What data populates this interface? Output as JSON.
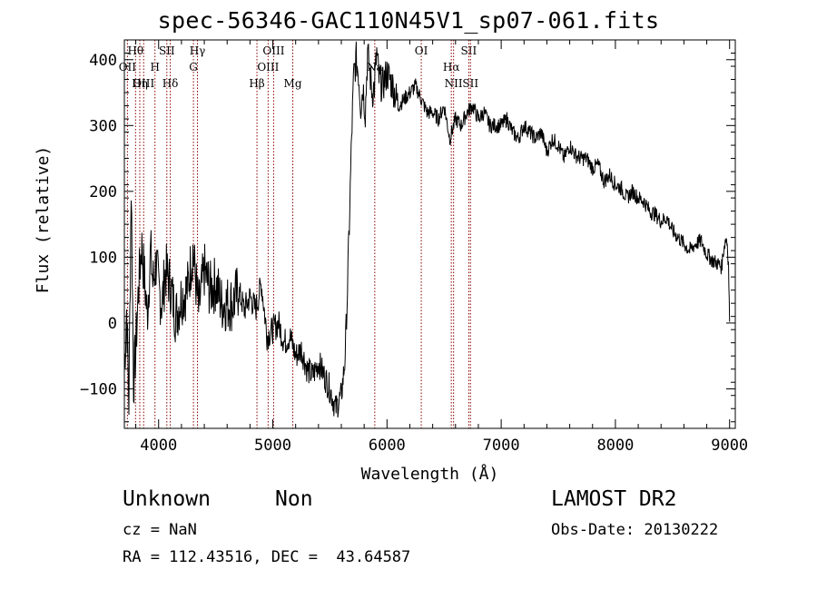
{
  "chart_data": {
    "type": "line",
    "title": "spec-56346-GAC110N45V1_sp07-061.fits",
    "xlabel": "Wavelength (Å)",
    "ylabel": "Flux (relative)",
    "xlim": [
      3700,
      9050
    ],
    "ylim": [
      -160,
      430
    ],
    "xticks": [
      4000,
      5000,
      6000,
      7000,
      8000,
      9000
    ],
    "yticks": [
      -100,
      0,
      100,
      200,
      300,
      400
    ],
    "xtick_labels": [
      "4000",
      "5000",
      "6000",
      "7000",
      "8000",
      "9000"
    ],
    "ytick_labels": [
      "−100",
      "0",
      "100",
      "200",
      "300",
      "400"
    ],
    "grid": false,
    "series": [
      {
        "x": [
          3700,
          3720,
          3740,
          3760,
          3780,
          3800,
          3820,
          3850,
          3880,
          3900,
          3930,
          3950,
          3980,
          4000,
          4030,
          4060,
          4100,
          4150,
          4200,
          4250,
          4300,
          4350,
          4400,
          4450,
          4500,
          4550,
          4600,
          4650,
          4700,
          4750,
          4800,
          4850,
          4900,
          4950,
          5000,
          5050,
          5100,
          5150,
          5200,
          5250,
          5300,
          5350,
          5400,
          5450,
          5500,
          5550,
          5600,
          5630,
          5650,
          5670,
          5690,
          5710,
          5730,
          5750,
          5770,
          5790,
          5810,
          5830,
          5850,
          5870,
          5890,
          5910,
          5930,
          5960,
          6000,
          6050,
          6100,
          6150,
          6200,
          6250,
          6300,
          6350,
          6400,
          6450,
          6500,
          6550,
          6600,
          6650,
          6700,
          6750,
          6800,
          6850,
          6900,
          6950,
          7000,
          7050,
          7100,
          7150,
          7200,
          7250,
          7300,
          7350,
          7400,
          7450,
          7500,
          7550,
          7600,
          7650,
          7700,
          7750,
          7800,
          7850,
          7900,
          7950,
          8000,
          8050,
          8100,
          8150,
          8200,
          8250,
          8300,
          8350,
          8400,
          8450,
          8500,
          8550,
          8600,
          8650,
          8700,
          8750,
          8800,
          8850,
          8900,
          8930,
          8950,
          8970,
          8980,
          8990,
          9000
        ],
        "y": [
          -70,
          20,
          -120,
          210,
          -90,
          -40,
          40,
          120,
          60,
          10,
          110,
          60,
          95,
          50,
          30,
          80,
          60,
          10,
          40,
          50,
          110,
          20,
          80,
          50,
          60,
          30,
          30,
          30,
          50,
          20,
          40,
          20,
          60,
          -20,
          -10,
          0,
          -30,
          -20,
          -50,
          -40,
          -70,
          -80,
          -60,
          -80,
          -100,
          -130,
          -110,
          -60,
          30,
          150,
          280,
          380,
          400,
          380,
          330,
          360,
          320,
          410,
          380,
          350,
          360,
          410,
          370,
          360,
          380,
          360,
          330,
          340,
          350,
          360,
          340,
          320,
          320,
          310,
          330,
          280,
          310,
          300,
          320,
          330,
          310,
          320,
          300,
          300,
          300,
          310,
          290,
          280,
          300,
          290,
          280,
          290,
          260,
          280,
          270,
          250,
          270,
          255,
          250,
          250,
          235,
          240,
          215,
          225,
          210,
          205,
          190,
          200,
          190,
          185,
          170,
          165,
          155,
          160,
          140,
          130,
          120,
          110,
          120,
          125,
          105,
          95,
          90,
          85,
          115,
          130,
          120,
          90,
          2
        ]
      }
    ],
    "lines": [
      {
        "label": "Hθ",
        "x": 3798,
        "row": 0
      },
      {
        "label": "OII",
        "x": 3727,
        "row": 1
      },
      {
        "label": "OIII",
        "x": 3869,
        "row": 2
      },
      {
        "label": "Hη",
        "x": 3835,
        "row": 2
      },
      {
        "label": "SII",
        "x": 4072,
        "row": 0
      },
      {
        "label": "H",
        "x": 3968,
        "row": 1
      },
      {
        "label": "Hδ",
        "x": 4102,
        "row": 2
      },
      {
        "label": "Hγ",
        "x": 4340,
        "row": 0
      },
      {
        "label": "G",
        "x": 4305,
        "row": 1
      },
      {
        "label": "OIII",
        "x": 5007,
        "row": 0
      },
      {
        "label": "OIII",
        "x": 4959,
        "row": 1
      },
      {
        "label": "Hβ",
        "x": 4861,
        "row": 2
      },
      {
        "label": "Mg",
        "x": 5175,
        "row": 2
      },
      {
        "label": "Na",
        "x": 5893,
        "row": 1
      },
      {
        "label": "OI",
        "x": 6300,
        "row": 0
      },
      {
        "label": "Hα",
        "x": 6563,
        "row": 1
      },
      {
        "label": "NII",
        "x": 6583,
        "row": 2
      },
      {
        "label": "SII",
        "x": 6716,
        "row": 0
      },
      {
        "label": "SII",
        "x": 6731,
        "row": 2
      }
    ]
  },
  "info": {
    "class": "Unknown",
    "subclass": "Non",
    "survey": "LAMOST DR2",
    "cz": "cz = NaN",
    "obsdate": "Obs-Date: 20130222",
    "radec": "RA = 112.43516, DEC =  43.64587"
  }
}
